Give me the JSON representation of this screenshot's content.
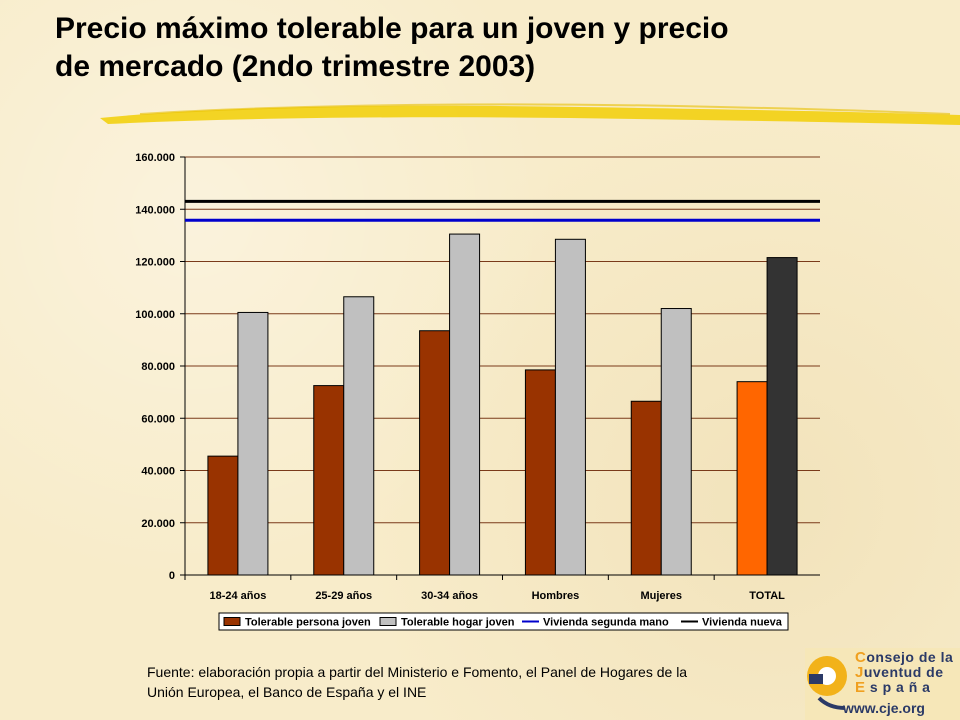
{
  "slide": {
    "title_line1": "Precio máximo tolerable para un joven y precio",
    "title_line2": "de mercado (2ndo trimestre 2003)",
    "source_line1": "Fuente: elaboración propia a partir del Ministerio e Fomento, el Panel de Hogares de la",
    "source_line2": "Unión Europea, el Banco de España y el INE"
  },
  "logo": {
    "line1_cap": "C",
    "line1_rest": "onsejo de la",
    "line2_cap": "J",
    "line2_rest": "uventud de",
    "line3_cap": "E",
    "line3_rest": " s p a ñ a",
    "url": "www.cje.org"
  },
  "colors": {
    "tolerable_persona": "#993300",
    "tolerable_hogar": "#c0c0c0",
    "total_persona": "#ff6600",
    "total_hogar": "#333333",
    "segunda_mano": "#0000cc",
    "nueva": "#000000",
    "grid": "#7a3a1a",
    "underline": "#f2d21a"
  },
  "chart_data": {
    "type": "bar",
    "title": "",
    "xlabel": "",
    "ylabel": "",
    "ylim": [
      0,
      160000
    ],
    "y_ticks": [
      0,
      20000,
      40000,
      60000,
      80000,
      100000,
      120000,
      140000,
      160000
    ],
    "y_tick_labels": [
      "0",
      "20.000",
      "40.000",
      "60.000",
      "80.000",
      "100.000",
      "120.000",
      "140.000",
      "160.000"
    ],
    "categories": [
      "18-24 años",
      "25-29 años",
      "30-34 años",
      "Hombres",
      "Mujeres",
      "TOTAL"
    ],
    "series": [
      {
        "name": "Tolerable persona joven",
        "values": [
          45500,
          72500,
          93500,
          78500,
          66500,
          74000
        ]
      },
      {
        "name": "Tolerable hogar joven",
        "values": [
          100500,
          106500,
          130500,
          128500,
          102000,
          121500
        ]
      }
    ],
    "reference_lines": [
      {
        "name": "Vivienda segunda mano",
        "value": 135800
      },
      {
        "name": "Vivienda nueva",
        "value": 143000
      }
    ],
    "legend": [
      "Tolerable persona joven",
      "Tolerable hogar joven",
      "Vivienda segunda mano",
      "Vivienda nueva"
    ],
    "legend_position": "bottom",
    "grid": true
  }
}
